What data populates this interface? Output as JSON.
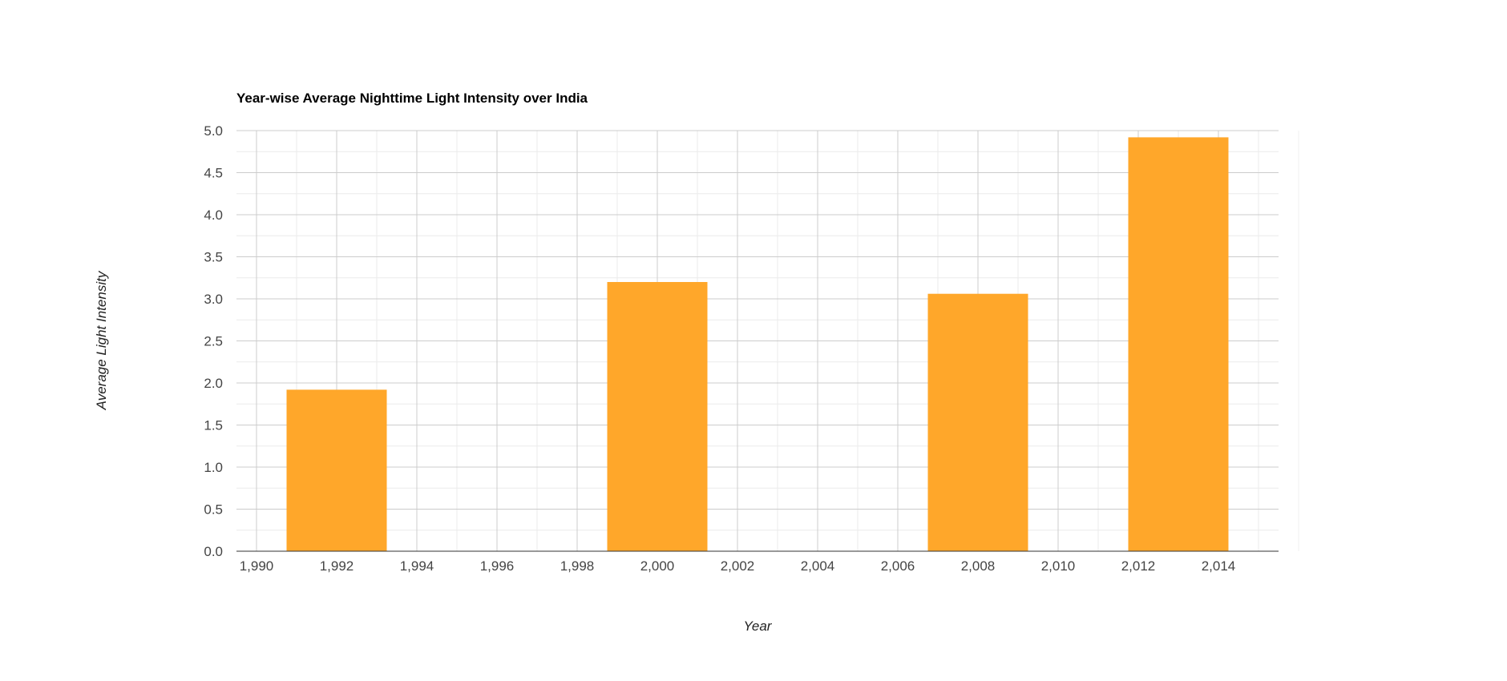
{
  "chart_data": {
    "type": "bar",
    "title": "Year-wise Average Nighttime Light Intensity over India",
    "xlabel": "Year",
    "ylabel": "Average Light Intensity",
    "x": [
      1992,
      2000,
      2008,
      2013
    ],
    "values": [
      1.92,
      3.2,
      3.06,
      4.92
    ],
    "bar_width_years": 2.5,
    "xlim": [
      1989.5,
      2015.5
    ],
    "ylim": [
      0,
      5
    ],
    "xticks": [
      1990,
      1992,
      1994,
      1996,
      1998,
      2000,
      2002,
      2004,
      2006,
      2008,
      2010,
      2012,
      2014
    ],
    "xtick_labels": [
      "1,990",
      "1,992",
      "1,994",
      "1,996",
      "1,998",
      "2,000",
      "2,002",
      "2,004",
      "2,006",
      "2,008",
      "2,010",
      "2,012",
      "2,014"
    ],
    "yticks": [
      0,
      0.5,
      1,
      1.5,
      2,
      2.5,
      3,
      3.5,
      4,
      4.5,
      5
    ],
    "ytick_labels": [
      "0.0",
      "0.5",
      "1.0",
      "1.5",
      "2.0",
      "2.5",
      "3.0",
      "3.5",
      "4.0",
      "4.5",
      "5.0"
    ],
    "grid": true,
    "legend": "none",
    "bar_color": "#ffa72a",
    "colors": {
      "major_grid": "#cccccc",
      "minor_grid": "#ebebeb",
      "axis": "#333333",
      "tick_text": "#444444",
      "title": "#000000"
    }
  }
}
